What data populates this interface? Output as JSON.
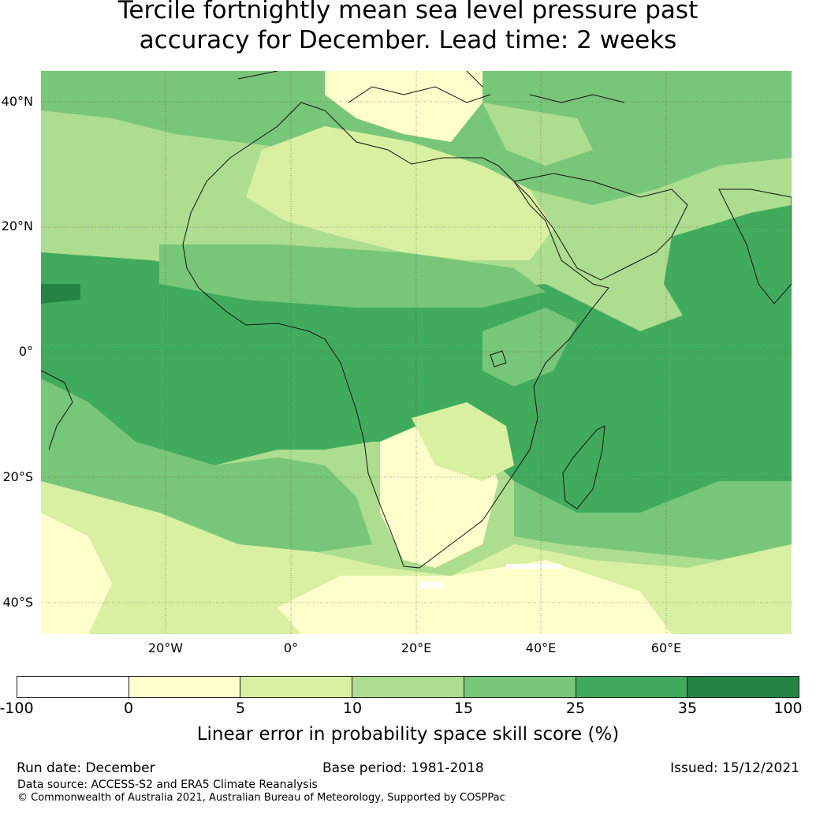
{
  "title": {
    "line1": "Tercile fortnightly mean sea level pressure past",
    "line2": "accuracy for December. Lead time: 2 weeks"
  },
  "map": {
    "region": "Africa, Arabian Peninsula and western Indian Ocean",
    "lat_labels": [
      "40°N",
      "20°N",
      "0°",
      "20°S",
      "40°S"
    ],
    "lon_labels": [
      "20°W",
      "0°",
      "20°E",
      "40°E",
      "60°E"
    ],
    "colors": {
      "n100_0": "#ffffff",
      "0_5": "#ffffcc",
      "5_10": "#d9f0a3",
      "10_15": "#addd8e",
      "15_25": "#78c679",
      "25_35": "#41ab5d",
      "35_100": "#238443"
    }
  },
  "colorbar": {
    "ticks": [
      "-100",
      "0",
      "5",
      "10",
      "15",
      "25",
      "35",
      "100"
    ],
    "colors": [
      "#ffffff",
      "#ffffcc",
      "#d9f0a3",
      "#addd8e",
      "#78c679",
      "#41ab5d",
      "#238443"
    ],
    "label": "Linear error in probability space skill score (%)"
  },
  "footer": {
    "run_date": "Run date: December",
    "base_period": "Base period: 1981-2018",
    "issued": "Issued: 15/12/2021",
    "data_source": "Data source: ACCESS-S2 and ERA5 Climate Reanalysis",
    "copyright": "© Commonwealth of Australia 2021, Australian Bureau of Meteorology, Supported by COSPPac"
  }
}
